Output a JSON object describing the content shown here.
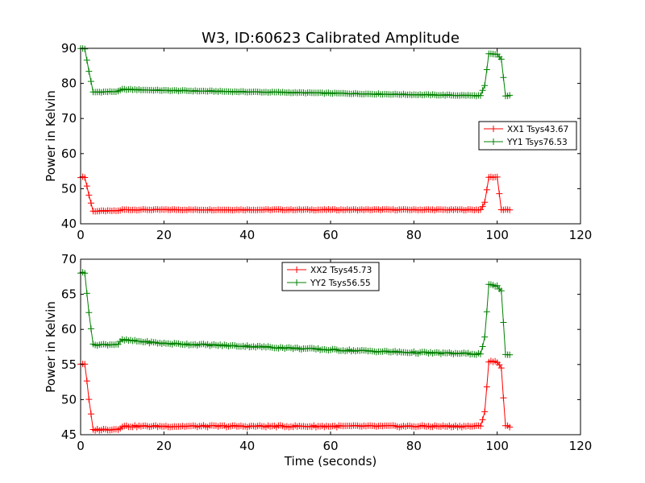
{
  "figure": {
    "title": "W3, ID:60623 Calibrated Amplitude"
  },
  "chart_data": [
    {
      "type": "line",
      "title": "W3, ID:60623 Calibrated Amplitude",
      "xlabel": "",
      "ylabel": "Power in Kelvin",
      "xlim": [
        0,
        120
      ],
      "ylim": [
        40,
        90
      ],
      "xticks": [
        0,
        20,
        40,
        60,
        80,
        100,
        120
      ],
      "yticks": [
        40,
        50,
        60,
        70,
        80,
        90
      ],
      "grid": false,
      "legend_position": "center-right",
      "series": [
        {
          "name": "XX1 Tsys43.67",
          "color": "#ff0000",
          "marker": "plus",
          "profile": {
            "x_range": [
              0,
              103
            ],
            "levels": [
              [
                0,
                53.3
              ],
              [
                1,
                53.3
              ],
              [
                2,
                48.2
              ],
              [
                3,
                43.6
              ],
              [
                9,
                43.7
              ],
              [
                10,
                44.0
              ],
              [
                96,
                44.0
              ],
              [
                97,
                46.0
              ],
              [
                98,
                53.3
              ],
              [
                100,
                53.3
              ],
              [
                101,
                44.0
              ],
              [
                103,
                44.0
              ]
            ]
          }
        },
        {
          "name": "YY1 Tsys76.53",
          "color": "#008000",
          "marker": "plus",
          "profile": {
            "x_range": [
              0,
              103
            ],
            "levels": [
              [
                0,
                90.0
              ],
              [
                1,
                89.8
              ],
              [
                2,
                83.5
              ],
              [
                3,
                77.5
              ],
              [
                9,
                77.7
              ],
              [
                10,
                78.3
              ],
              [
                20,
                78.0
              ],
              [
                40,
                77.6
              ],
              [
                60,
                77.2
              ],
              [
                80,
                76.8
              ],
              [
                96,
                76.5
              ],
              [
                97,
                79.3
              ],
              [
                98,
                88.4
              ],
              [
                100,
                88.3
              ],
              [
                101,
                86.8
              ],
              [
                102,
                76.5
              ],
              [
                103,
                76.5
              ]
            ]
          }
        }
      ]
    },
    {
      "type": "line",
      "title": "",
      "xlabel": "Time (seconds)",
      "ylabel": "Power in Kelvin",
      "xlim": [
        0,
        120
      ],
      "ylim": [
        45,
        70
      ],
      "xticks": [
        0,
        20,
        40,
        60,
        80,
        100,
        120
      ],
      "yticks": [
        45,
        50,
        55,
        60,
        65,
        70
      ],
      "grid": false,
      "legend_position": "top-center",
      "series": [
        {
          "name": "XX2 Tsys45.73",
          "color": "#ff0000",
          "marker": "plus",
          "profile": {
            "x_range": [
              0,
              103
            ],
            "levels": [
              [
                0,
                55.1
              ],
              [
                1,
                55.1
              ],
              [
                2,
                50.0
              ],
              [
                3,
                45.7
              ],
              [
                9,
                45.8
              ],
              [
                10,
                46.2
              ],
              [
                96,
                46.2
              ],
              [
                97,
                48.3
              ],
              [
                98,
                55.4
              ],
              [
                100,
                55.4
              ],
              [
                101,
                54.5
              ],
              [
                102,
                46.2
              ],
              [
                103,
                46.2
              ]
            ]
          }
        },
        {
          "name": "YY2 Tsys56.55",
          "color": "#008000",
          "marker": "plus",
          "profile": {
            "x_range": [
              0,
              103
            ],
            "levels": [
              [
                0,
                68.1
              ],
              [
                1,
                68.0
              ],
              [
                2,
                62.5
              ],
              [
                3,
                57.8
              ],
              [
                9,
                57.9
              ],
              [
                10,
                58.5
              ],
              [
                20,
                58.0
              ],
              [
                40,
                57.6
              ],
              [
                60,
                57.1
              ],
              [
                80,
                56.7
              ],
              [
                96,
                56.5
              ],
              [
                97,
                58.8
              ],
              [
                98,
                66.3
              ],
              [
                100,
                66.2
              ],
              [
                101,
                65.4
              ],
              [
                102,
                56.5
              ],
              [
                103,
                56.4
              ]
            ]
          }
        }
      ]
    }
  ]
}
